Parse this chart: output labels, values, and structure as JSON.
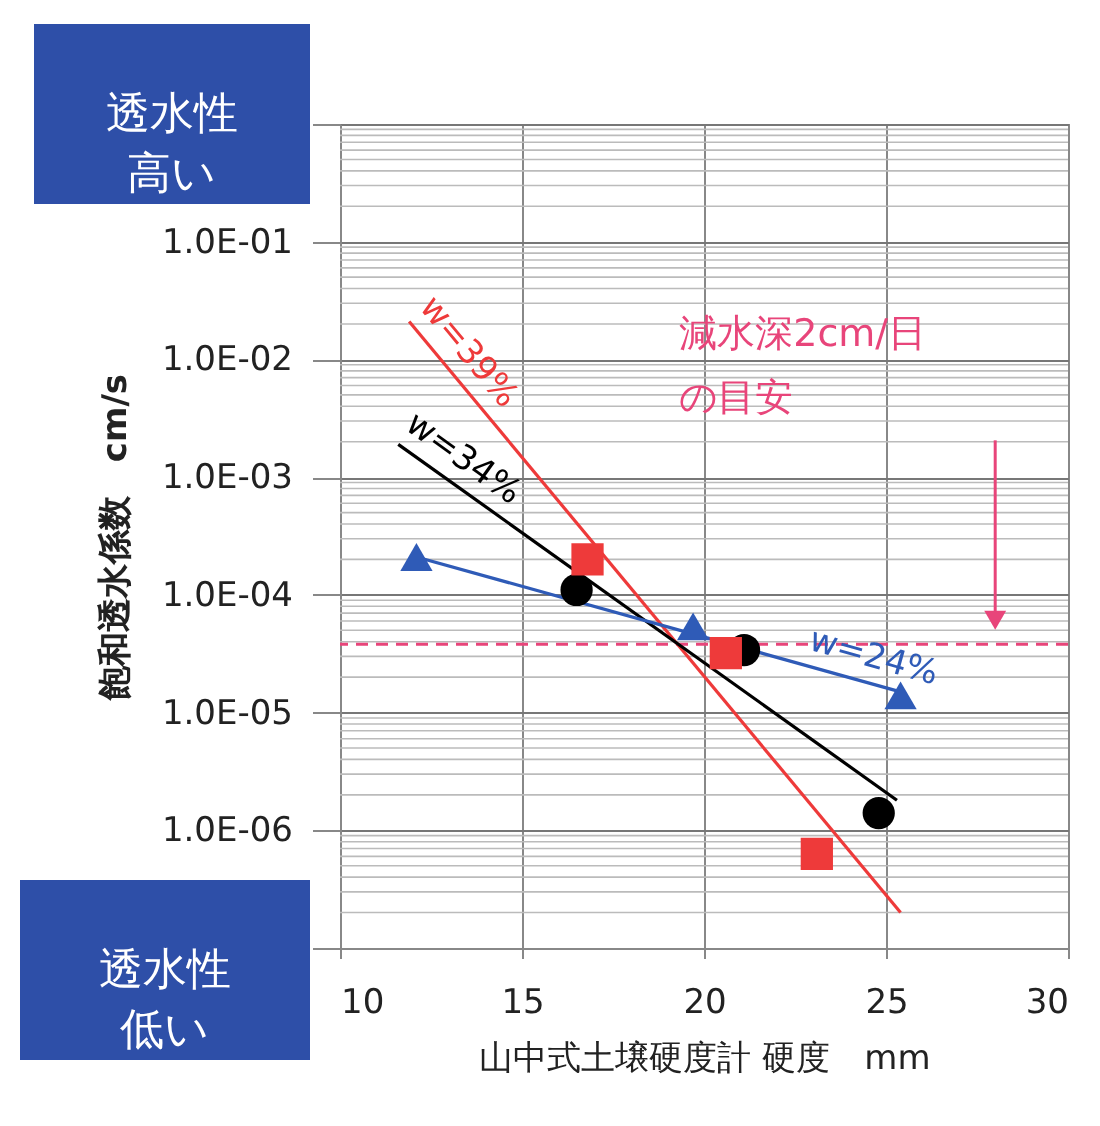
{
  "chart_data": {
    "type": "scatter",
    "xlabel": "山中式土壌硬度計 硬度　mm",
    "ylabel": "飽和透水係数　cm/s",
    "xlim": [
      10,
      30
    ],
    "xticks": [
      10,
      15,
      20,
      25,
      30
    ],
    "ylim": [
      1e-07,
      1
    ],
    "log": "y",
    "yticks": [
      {
        "value": 1,
        "label": null
      },
      {
        "value": 0.1,
        "label": "1.0E-01"
      },
      {
        "value": 0.01,
        "label": "1.0E-02"
      },
      {
        "value": 0.001,
        "label": "1.0E-03"
      },
      {
        "value": 0.0001,
        "label": "1.0E-04"
      },
      {
        "value": 1e-05,
        "label": "1.0E-05"
      },
      {
        "value": 1e-06,
        "label": "1.0E-06"
      },
      {
        "value": 1e-07,
        "label": null
      }
    ],
    "grid": true,
    "series": [
      {
        "type": "line",
        "name": "w=39%",
        "color": "#ee3a3a",
        "marker": "none",
        "x": [
          11.9,
          25.4
        ],
        "values": [
          0.021,
          2e-07
        ]
      },
      {
        "type": "line",
        "name": "w=34%",
        "color": "#000000",
        "marker": "none",
        "x": [
          11.6,
          25.3
        ],
        "values": [
          0.0019,
          1.8e-06
        ]
      },
      {
        "type": "line",
        "name": "w=24%",
        "color": "#2f5bb7",
        "marker": "none",
        "x": [
          12.1,
          25.4
        ],
        "values": [
          0.00021,
          1.5e-05
        ]
      },
      {
        "color": "#2f5bb7",
        "marker": "triangle",
        "x": [
          12.1,
          19.7,
          25.4
        ],
        "values": [
          0.00021,
          5.4e-05,
          1.4e-05
        ]
      },
      {
        "color": "#000000",
        "marker": "circle",
        "x": [
          16.5,
          21.1,
          24.8
        ],
        "values": [
          0.00011,
          3.4e-05,
          1.4e-06
        ]
      },
      {
        "color": "#ee3a3a",
        "marker": "square",
        "x": [
          16.8,
          20.6,
          23.1
        ],
        "values": [
          0.0002,
          3.2e-05,
          6.3e-07
        ]
      }
    ],
    "ref_lines": [
      {
        "axis": "y",
        "value": 3.8e-05,
        "color": "#e8457a",
        "line_style": "dashed"
      }
    ],
    "annotations": [
      "透水性高い",
      "透水性低い",
      "減水深2cm/日の目安"
    ]
  }
}
